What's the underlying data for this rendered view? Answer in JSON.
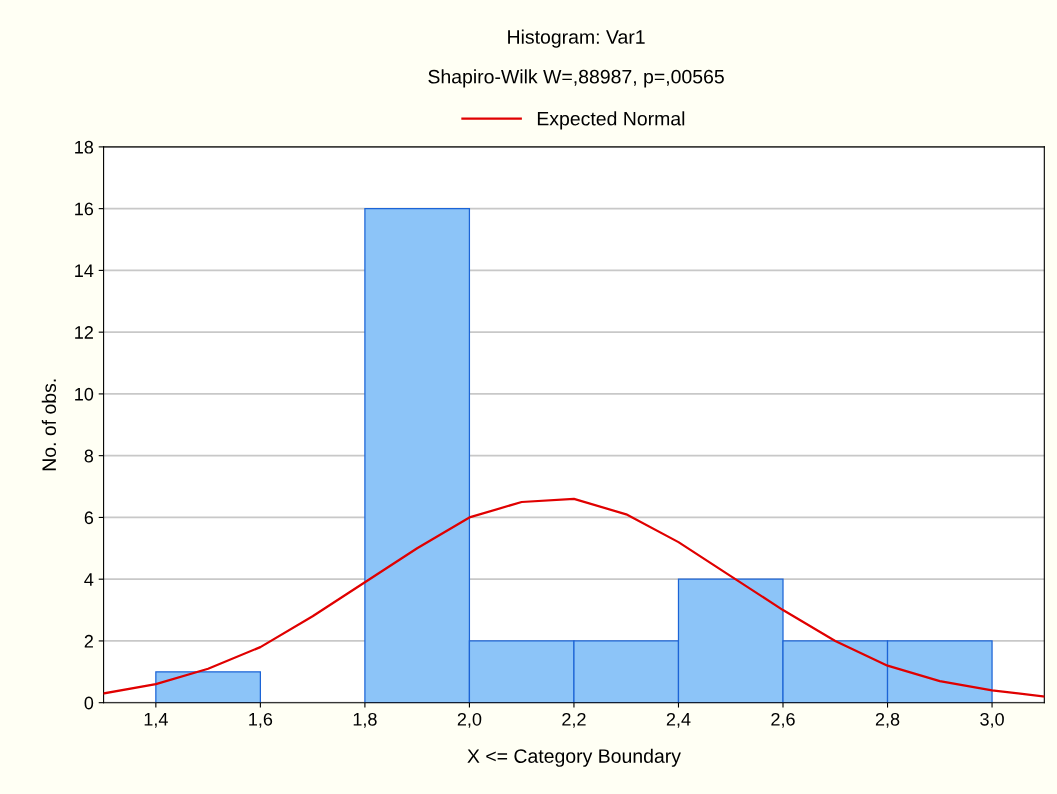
{
  "chart_data": {
    "type": "histogram",
    "title": "Histogram: Var1",
    "subtitle": "Shapiro-Wilk W=,88987, p=,00565",
    "xlabel": "X <= Category Boundary",
    "ylabel": "No. of obs.",
    "bins": [
      1.4,
      1.6,
      1.8,
      2.0,
      2.2,
      2.4,
      2.6,
      2.8,
      3.0
    ],
    "values": [
      1,
      0,
      16,
      2,
      2,
      4,
      2,
      2
    ],
    "color": "#8cc4f8",
    "series": [
      {
        "name": "Expected Normal",
        "type": "line",
        "color": "#e00000",
        "x": [
          1.3,
          1.4,
          1.5,
          1.6,
          1.7,
          1.8,
          1.9,
          2.0,
          2.1,
          2.2,
          2.3,
          2.4,
          2.5,
          2.6,
          2.7,
          2.8,
          2.9,
          3.0,
          3.1
        ],
        "values": [
          0.3,
          0.6,
          1.1,
          1.8,
          2.8,
          3.9,
          5.0,
          6.0,
          6.5,
          6.6,
          6.1,
          5.2,
          4.1,
          3.0,
          2.0,
          1.2,
          0.7,
          0.4,
          0.2
        ]
      }
    ],
    "xlim": [
      1.3,
      3.1
    ],
    "xticks": [
      {
        "value": 1.4,
        "label": "1,4"
      },
      {
        "value": 1.6,
        "label": "1,6"
      },
      {
        "value": 1.8,
        "label": "1,8"
      },
      {
        "value": 2.0,
        "label": "2,0"
      },
      {
        "value": 2.2,
        "label": "2,2"
      },
      {
        "value": 2.4,
        "label": "2,4"
      },
      {
        "value": 2.6,
        "label": "2,6"
      },
      {
        "value": 2.8,
        "label": "2,8"
      },
      {
        "value": 3.0,
        "label": "3,0"
      }
    ],
    "ylim": [
      0,
      18
    ],
    "yticks": [
      0,
      2,
      4,
      6,
      8,
      10,
      12,
      14,
      16,
      18
    ],
    "grid": "y",
    "legend": "top"
  }
}
